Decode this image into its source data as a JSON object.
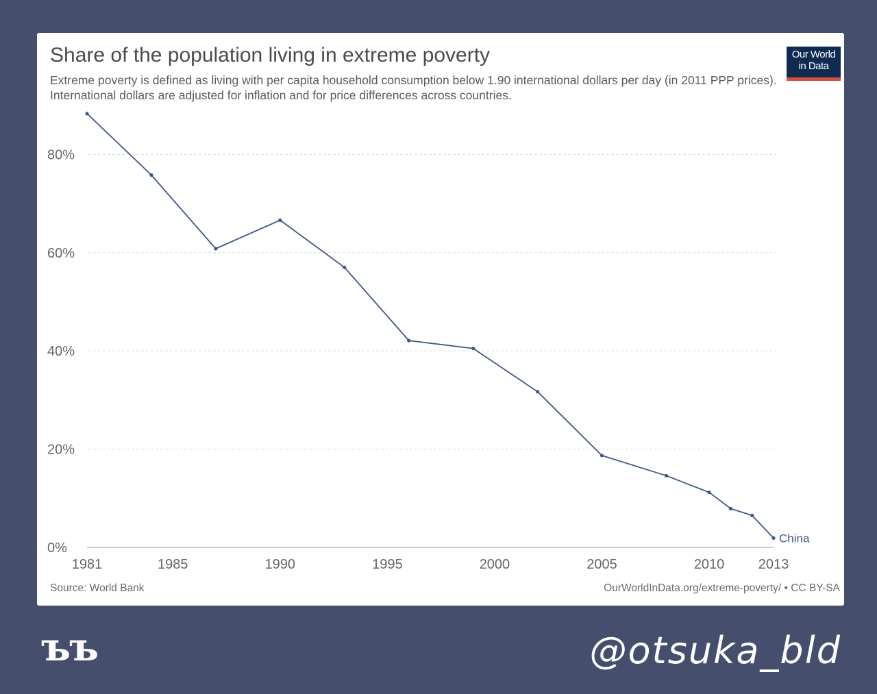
{
  "chart_data": {
    "type": "line",
    "title": "Share of the population living in extreme poverty",
    "subtitle": "Extreme poverty is defined as living with per capita household consumption below 1.90 international dollars per day (in 2011 PPP prices). International dollars are adjusted for inflation and for price differences across countries.",
    "xlabel": "",
    "ylabel": "",
    "xlim": [
      1981,
      2013
    ],
    "ylim": [
      0,
      88
    ],
    "grid": true,
    "x_ticks": [
      1981,
      1985,
      1990,
      1995,
      2000,
      2005,
      2010,
      2013
    ],
    "y_ticks": [
      0,
      20,
      40,
      60,
      80
    ],
    "y_tick_labels": [
      "0%",
      "20%",
      "40%",
      "60%",
      "80%"
    ],
    "series": [
      {
        "name": "China",
        "color": "#3f5786",
        "x": [
          1981,
          1984,
          1987,
          1990,
          1993,
          1996,
          1999,
          2002,
          2005,
          2008,
          2010,
          2011,
          2012,
          2013
        ],
        "values": [
          88.3,
          75.8,
          60.8,
          66.6,
          57.0,
          42.1,
          40.5,
          31.7,
          18.7,
          14.6,
          11.2,
          7.9,
          6.5,
          1.9
        ]
      }
    ]
  },
  "source": "Source: World Bank",
  "credit": "OurWorldInData.org/extreme-poverty/ • CC BY-SA",
  "logo": {
    "line1": "Our World",
    "line2": "in Data"
  },
  "brand_mark": "ъъ",
  "handle": "@otsuka_bld",
  "colors": {
    "background": "#454e6c",
    "line": "#3f5786",
    "logo": "#0f2b51",
    "logo_accent": "#d6513e"
  }
}
